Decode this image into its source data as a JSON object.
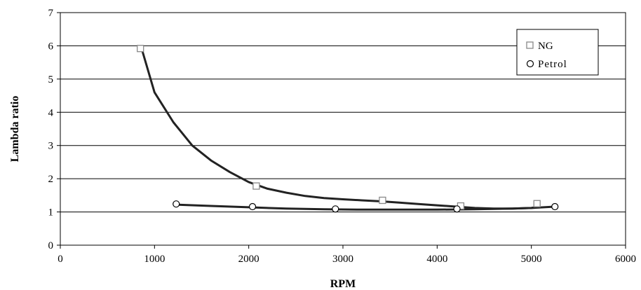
{
  "chart_data": {
    "type": "scatter",
    "title": "",
    "xlabel": "RPM",
    "ylabel": "Lambda ratio",
    "xlim": [
      0,
      6000
    ],
    "ylim": [
      0,
      7
    ],
    "xticks": [
      0,
      1000,
      2000,
      3000,
      4000,
      5000,
      6000
    ],
    "yticks": [
      0,
      1,
      2,
      3,
      4,
      5,
      6,
      7
    ],
    "grid": "horizontal",
    "legend_position": "top-right",
    "series": [
      {
        "name": "NG",
        "marker": "square",
        "x": [
          850,
          2080,
          3420,
          4250,
          5060
        ],
        "y": [
          5.92,
          1.78,
          1.35,
          1.18,
          1.25
        ],
        "trendline": [
          [
            870,
            5.85
          ],
          [
            1000,
            4.6
          ],
          [
            1200,
            3.7
          ],
          [
            1400,
            3.0
          ],
          [
            1600,
            2.55
          ],
          [
            1800,
            2.2
          ],
          [
            2000,
            1.9
          ],
          [
            2200,
            1.7
          ],
          [
            2400,
            1.58
          ],
          [
            2600,
            1.48
          ],
          [
            2800,
            1.42
          ],
          [
            3000,
            1.38
          ],
          [
            3200,
            1.35
          ],
          [
            3400,
            1.32
          ],
          [
            3600,
            1.28
          ],
          [
            3800,
            1.24
          ],
          [
            4000,
            1.2
          ],
          [
            4200,
            1.16
          ],
          [
            4400,
            1.12
          ],
          [
            4600,
            1.1
          ],
          [
            4800,
            1.1
          ],
          [
            5000,
            1.12
          ],
          [
            5060,
            1.15
          ]
        ]
      },
      {
        "name": "Petrol",
        "marker": "circle",
        "x": [
          1230,
          2040,
          2920,
          4210,
          5250
        ],
        "y": [
          1.24,
          1.16,
          1.09,
          1.09,
          1.16
        ],
        "trendline": [
          [
            1230,
            1.22
          ],
          [
            1600,
            1.18
          ],
          [
            2000,
            1.14
          ],
          [
            2400,
            1.1
          ],
          [
            2800,
            1.08
          ],
          [
            3200,
            1.07
          ],
          [
            3600,
            1.07
          ],
          [
            4000,
            1.07
          ],
          [
            4400,
            1.08
          ],
          [
            4800,
            1.1
          ],
          [
            5000,
            1.12
          ],
          [
            5250,
            1.16
          ]
        ]
      }
    ]
  }
}
